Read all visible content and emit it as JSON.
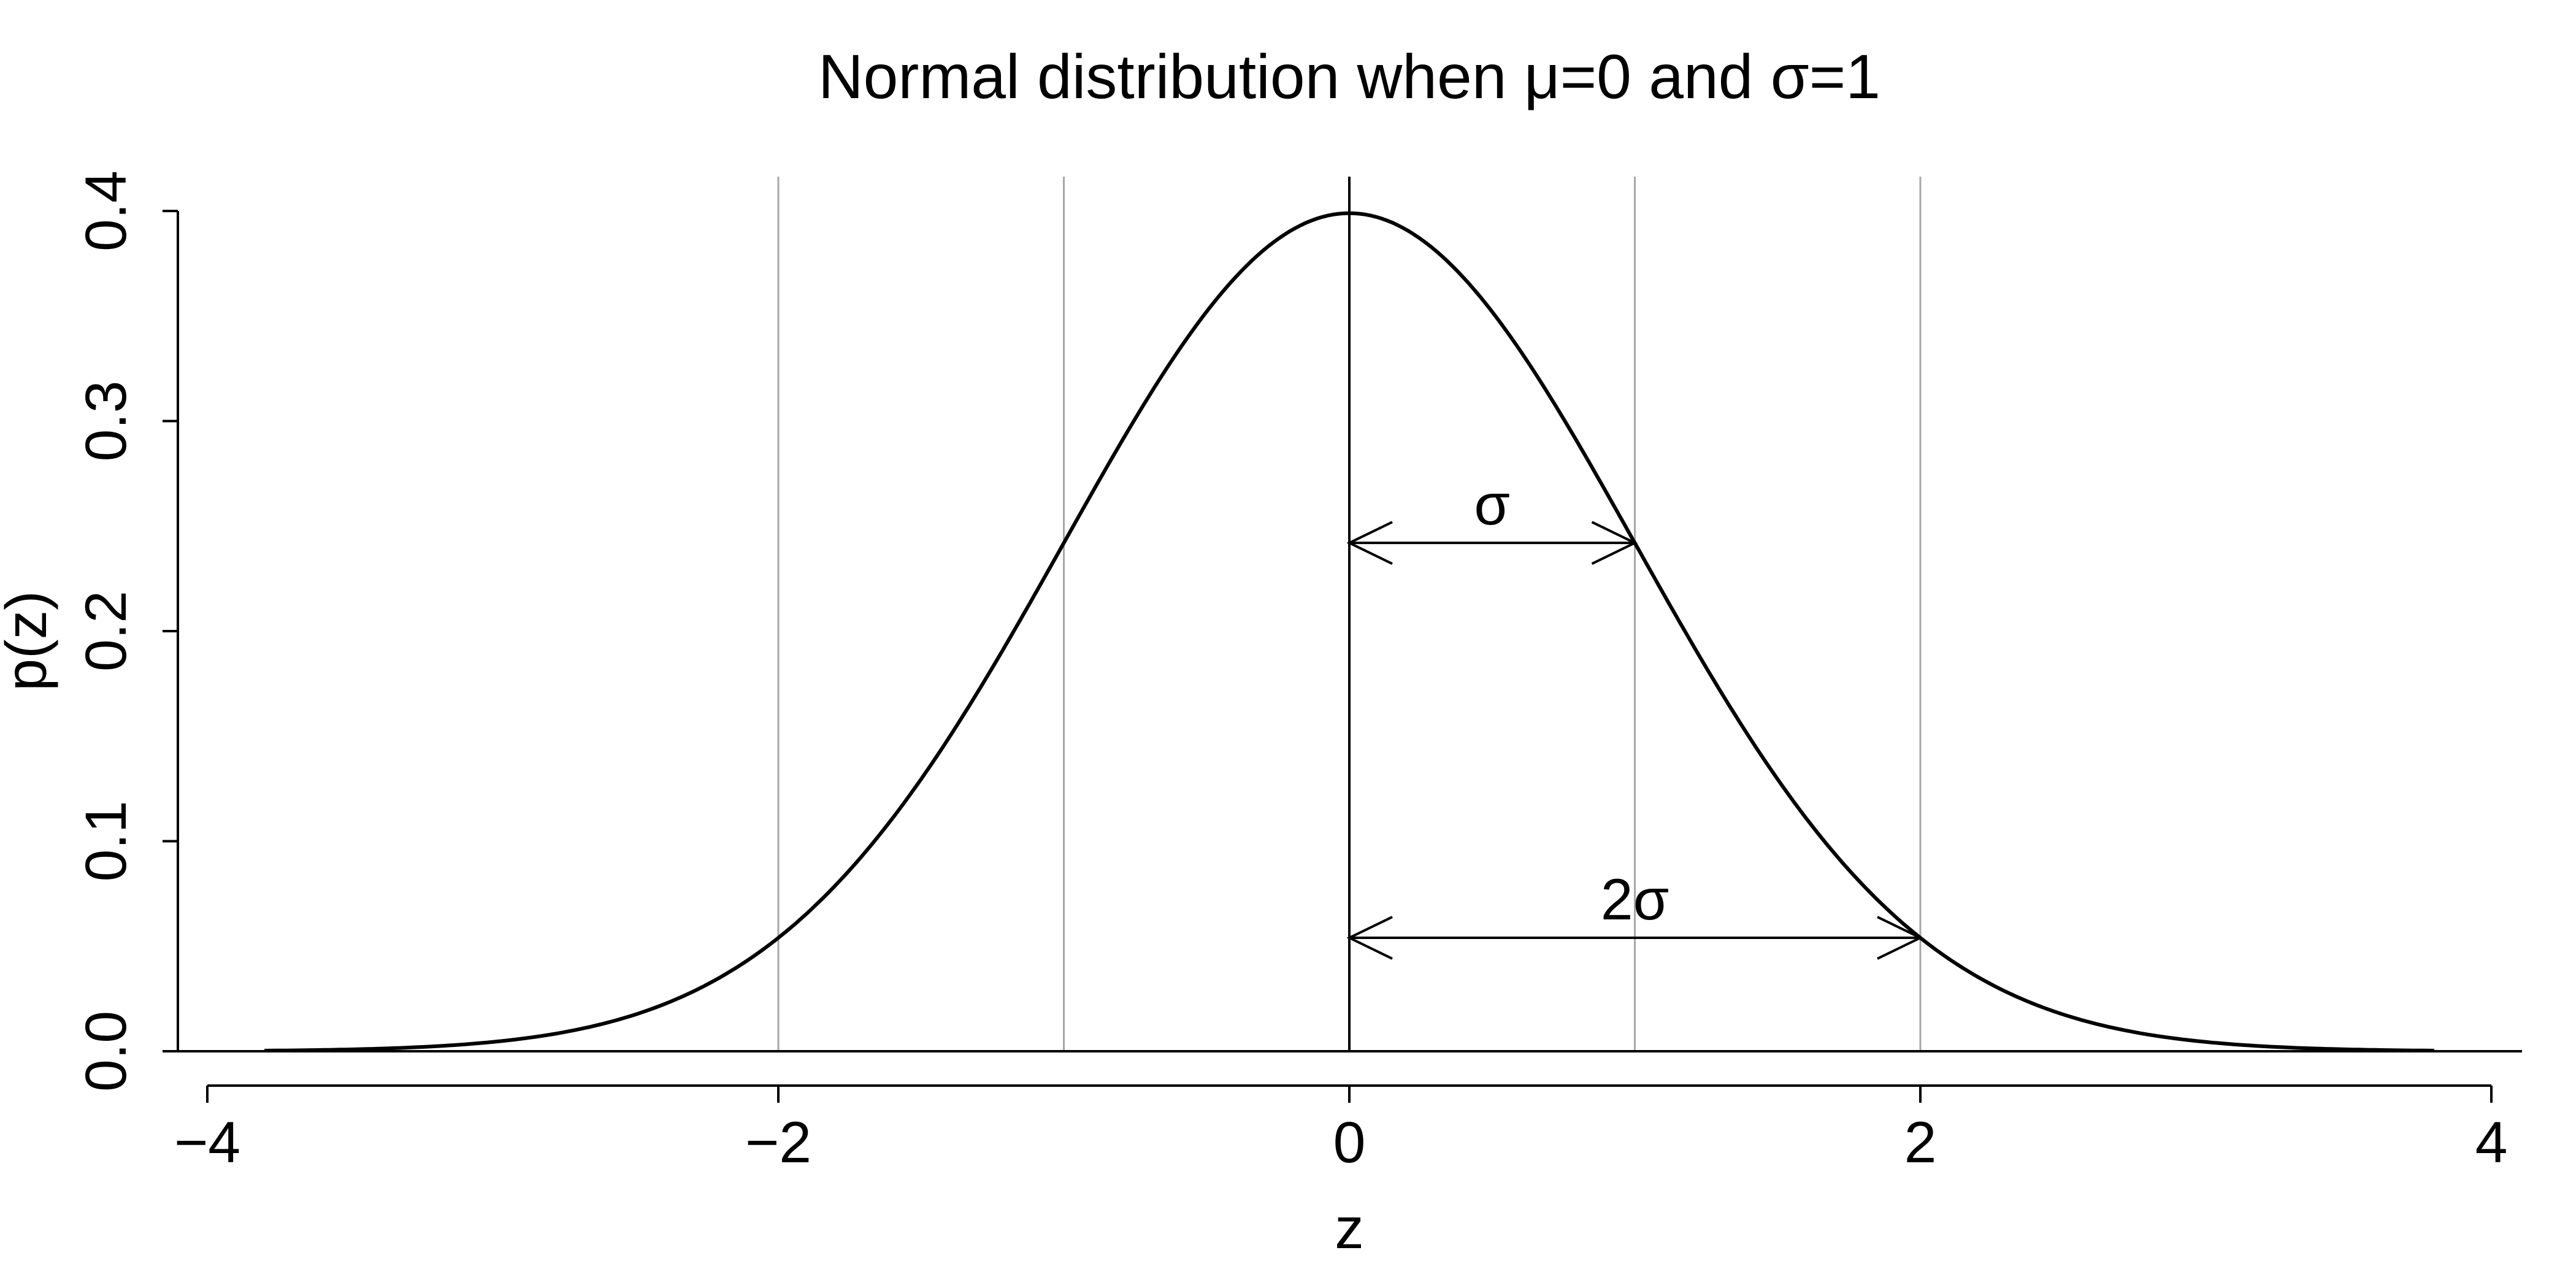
{
  "chart_data": {
    "type": "line",
    "title": "Normal distribution when μ=0 and σ=1",
    "xlabel": "z",
    "ylabel": "p(z)",
    "xlim": [
      -4,
      4
    ],
    "ylim": [
      0,
      0.4
    ],
    "x_ticks": [
      -4,
      -2,
      0,
      2,
      4
    ],
    "x_tick_labels": [
      "−4",
      "−2",
      "0",
      "2",
      "4"
    ],
    "y_ticks": [
      0.0,
      0.1,
      0.2,
      0.3,
      0.4
    ],
    "y_tick_labels": [
      "0.0",
      "0.1",
      "0.2",
      "0.3",
      "0.4"
    ],
    "grid": "vertical lines at z = -2, -1, 1, 2",
    "vertical_gridlines_at": [
      -2,
      -1,
      1,
      2
    ],
    "mean_line_at": 0,
    "series": [
      {
        "x": [
          -3.8,
          -3.6,
          -3.4,
          -3.2,
          -3.0,
          -2.8,
          -2.6,
          -2.4,
          -2.2,
          -2.0,
          -1.8,
          -1.6,
          -1.4,
          -1.2,
          -1.0,
          -0.8,
          -0.6,
          -0.4,
          -0.2,
          0.0,
          0.2,
          0.4,
          0.6,
          0.8,
          1.0,
          1.2,
          1.4,
          1.6,
          1.8,
          2.0,
          2.2,
          2.4,
          2.6,
          2.8,
          3.0,
          3.2,
          3.4,
          3.6,
          3.8
        ],
        "y": [
          0.0003,
          0.0006,
          0.0012,
          0.0024,
          0.0044,
          0.0079,
          0.0136,
          0.0224,
          0.0355,
          0.054,
          0.079,
          0.1109,
          0.1497,
          0.1942,
          0.242,
          0.2897,
          0.3332,
          0.3683,
          0.391,
          0.3989,
          0.391,
          0.3683,
          0.3332,
          0.2897,
          0.242,
          0.1942,
          0.1497,
          0.1109,
          0.079,
          0.054,
          0.0355,
          0.0224,
          0.0136,
          0.0079,
          0.0044,
          0.0024,
          0.0012,
          0.0006,
          0.0003
        ]
      }
    ],
    "annotations": [
      {
        "label": "σ",
        "from_x": 0,
        "to_x": 1,
        "y": 0.242
      },
      {
        "label": "2σ",
        "from_x": 0,
        "to_x": 2,
        "y": 0.054
      }
    ]
  }
}
